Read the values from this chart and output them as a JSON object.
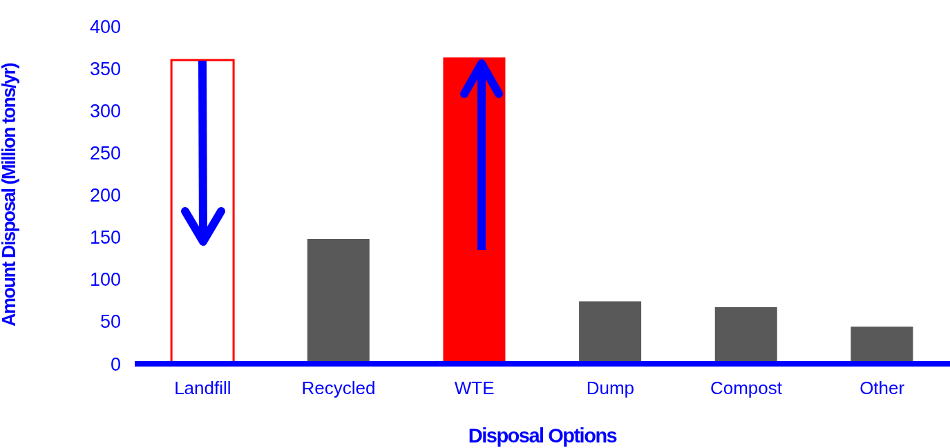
{
  "chart_data": {
    "type": "bar",
    "xlabel": "Disposal Options",
    "ylabel": "Amount Disposal (Million tons/yr)",
    "categories": [
      "Landfill",
      "Recycled",
      "WTE",
      "Dump",
      "Compost",
      "Other"
    ],
    "values": [
      360,
      148,
      363,
      74,
      67,
      44
    ],
    "colors": [
      "#ffffff",
      "#595959",
      "#ff0000",
      "#595959",
      "#595959",
      "#595959"
    ],
    "ylim": [
      0,
      400
    ],
    "yticks": [
      0,
      50,
      100,
      150,
      200,
      250,
      300,
      350,
      400
    ],
    "grid": false,
    "legend": false
  }
}
